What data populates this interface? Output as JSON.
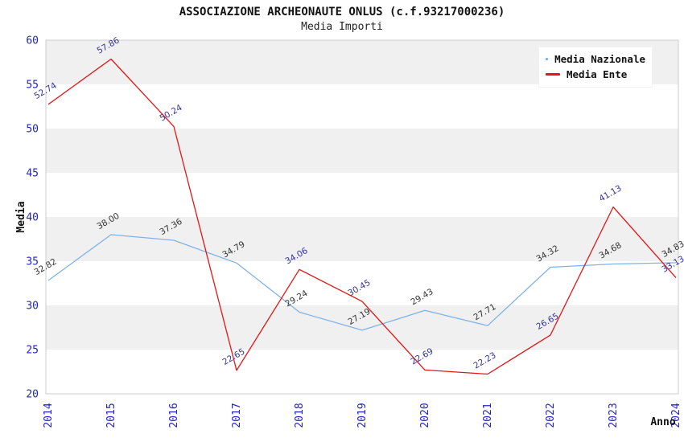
{
  "header": {
    "title": "ASSOCIAZIONE ARCHEONAUTE ONLUS (c.f.93217000236)",
    "subtitle": "Media Importi"
  },
  "legend": {
    "items": [
      {
        "label": "Media Nazionale",
        "color": "#7FB2E8"
      },
      {
        "label": "Media Ente",
        "color": "#E01717"
      }
    ]
  },
  "chart_data": {
    "type": "line",
    "title": "ASSOCIAZIONE ARCHEONAUTE ONLUS (c.f.93217000236)",
    "subtitle": "Media Importi",
    "xlabel": "Anno",
    "ylabel": "Media",
    "x": [
      2014,
      2015,
      2016,
      2017,
      2018,
      2019,
      2020,
      2021,
      2022,
      2023,
      2024
    ],
    "series": [
      {
        "name": "Media Nazionale",
        "color": "#7FB2E8",
        "label_color": "#333333",
        "values": [
          32.82,
          38.0,
          37.36,
          34.79,
          29.24,
          27.19,
          29.43,
          27.71,
          34.32,
          34.68,
          34.83
        ]
      },
      {
        "name": "Media Ente",
        "color": "#E01717",
        "label_color": "#333399",
        "values": [
          52.74,
          57.86,
          50.24,
          22.65,
          34.06,
          30.45,
          22.69,
          22.23,
          26.65,
          41.13,
          33.13
        ]
      }
    ],
    "ylim": [
      20,
      60
    ],
    "ytick_step": 5,
    "yticks": [
      20,
      25,
      30,
      35,
      40,
      45,
      50,
      55,
      60
    ],
    "grid": "alternating-horizontal-bands",
    "band_color": "#F0F0F0",
    "plot_border_color": "#CCCCCC",
    "axis_tick_color": "#2222CC",
    "legend_position": "top-right",
    "value_label_decimals": 2,
    "value_label_rotation_deg": -30
  }
}
